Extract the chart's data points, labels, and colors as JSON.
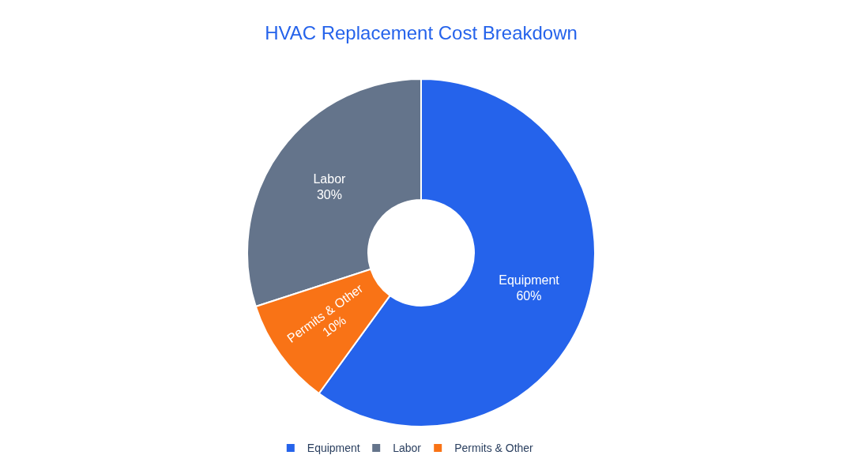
{
  "chart_data": {
    "type": "donut",
    "title": "HVAC Replacement Cost Breakdown",
    "categories": [
      "Equipment",
      "Labor",
      "Permits & Other"
    ],
    "values": [
      60,
      30,
      10
    ],
    "colors": [
      "#2563eb",
      "#64748b",
      "#f97316"
    ],
    "value_labels": [
      "60%",
      "30%",
      "10%"
    ],
    "legend": "bottom"
  }
}
